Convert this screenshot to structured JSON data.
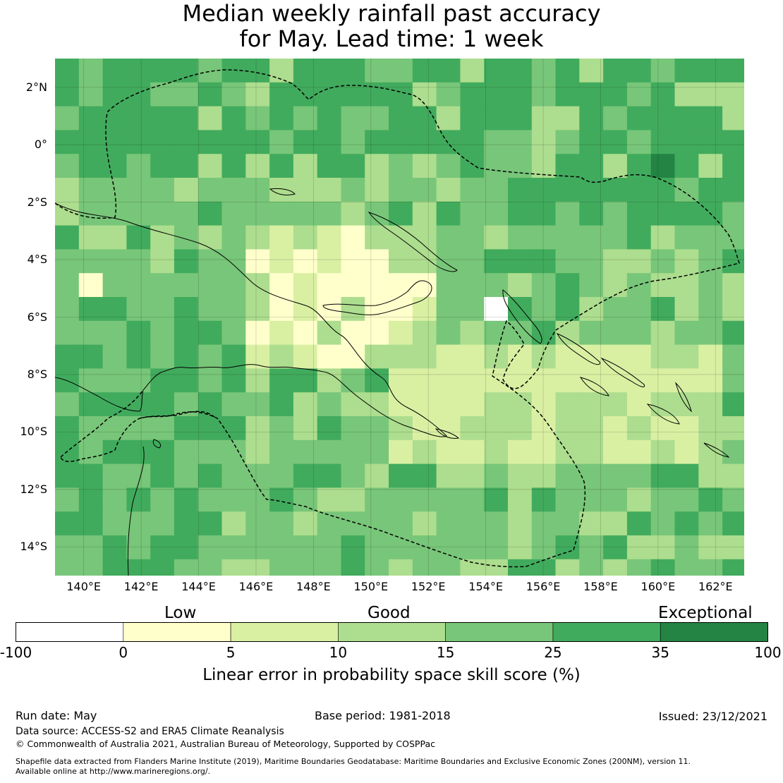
{
  "title": {
    "line1": "Median weekly rainfall past accuracy",
    "line2": "for May. Lead time: 1 week"
  },
  "map": {
    "lon_range": [
      139.0,
      163.0
    ],
    "lat_range": [
      -15.0,
      3.0
    ],
    "cell_deg": 0.83,
    "lat_labels": [
      "2°N",
      "0°",
      "2°S",
      "4°S",
      "6°S",
      "8°S",
      "10°S",
      "12°S",
      "14°S"
    ],
    "lat_values": [
      2,
      0,
      -2,
      -4,
      -6,
      -8,
      -10,
      -12,
      -14
    ],
    "lon_labels": [
      "140°E",
      "142°E",
      "144°E",
      "146°E",
      "148°E",
      "150°E",
      "152°E",
      "154°E",
      "156°E",
      "158°E",
      "160°E",
      "162°E"
    ],
    "lon_values": [
      140,
      142,
      144,
      146,
      148,
      150,
      152,
      154,
      156,
      158,
      160,
      162
    ],
    "zone_legend": "Low = yellow, Good = light green, Exceptional = dark green",
    "dominant_class_by_region": {
      "north_equatorial": "25-35",
      "png_mainland": "15-25",
      "solomon_sea": "5-15",
      "coral_sea": "15-25"
    },
    "eez_boundary": "dashed",
    "coastline": "solid"
  },
  "colorbar": {
    "categories": [
      {
        "label": "Low",
        "anchor_value": 0
      },
      {
        "label": "Good",
        "anchor_value": 10
      },
      {
        "label": "Exceptional",
        "anchor_value": 100
      }
    ],
    "tick_labels": [
      "-100",
      "0",
      "5",
      "10",
      "15",
      "25",
      "35",
      "100"
    ],
    "bins": [
      {
        "from": -100,
        "to": 0,
        "color": "#ffffff"
      },
      {
        "from": 0,
        "to": 5,
        "color": "#ffffcc"
      },
      {
        "from": 5,
        "to": 10,
        "color": "#d9f0a3"
      },
      {
        "from": 10,
        "to": 15,
        "color": "#addd8e"
      },
      {
        "from": 15,
        "to": 25,
        "color": "#78c679"
      },
      {
        "from": 25,
        "to": 35,
        "color": "#41ab5d"
      },
      {
        "from": 35,
        "to": 100,
        "color": "#238443"
      }
    ],
    "title": "Linear error in probability space skill score (%)"
  },
  "footer": {
    "run_date": "Run date: May",
    "base_period": "Base period: 1981-2018",
    "issued": "Issued: 23/12/2021",
    "data_source": "Data source: ACCESS-S2 and ERA5 Climate Reanalysis",
    "copyright": "© Commonwealth of Australia 2021, Australian Bureau of Meteorology, Supported by COSPPac",
    "shapefile_line1": "Shapefile data extracted from Flanders Marine Institute (2019), Maritime Boundaries Geodatabase: Maritime Boundaries and Exclusive Economic Zones (200NM), version 11.",
    "shapefile_line2": "Available online at http://www.marineregions.org/."
  }
}
